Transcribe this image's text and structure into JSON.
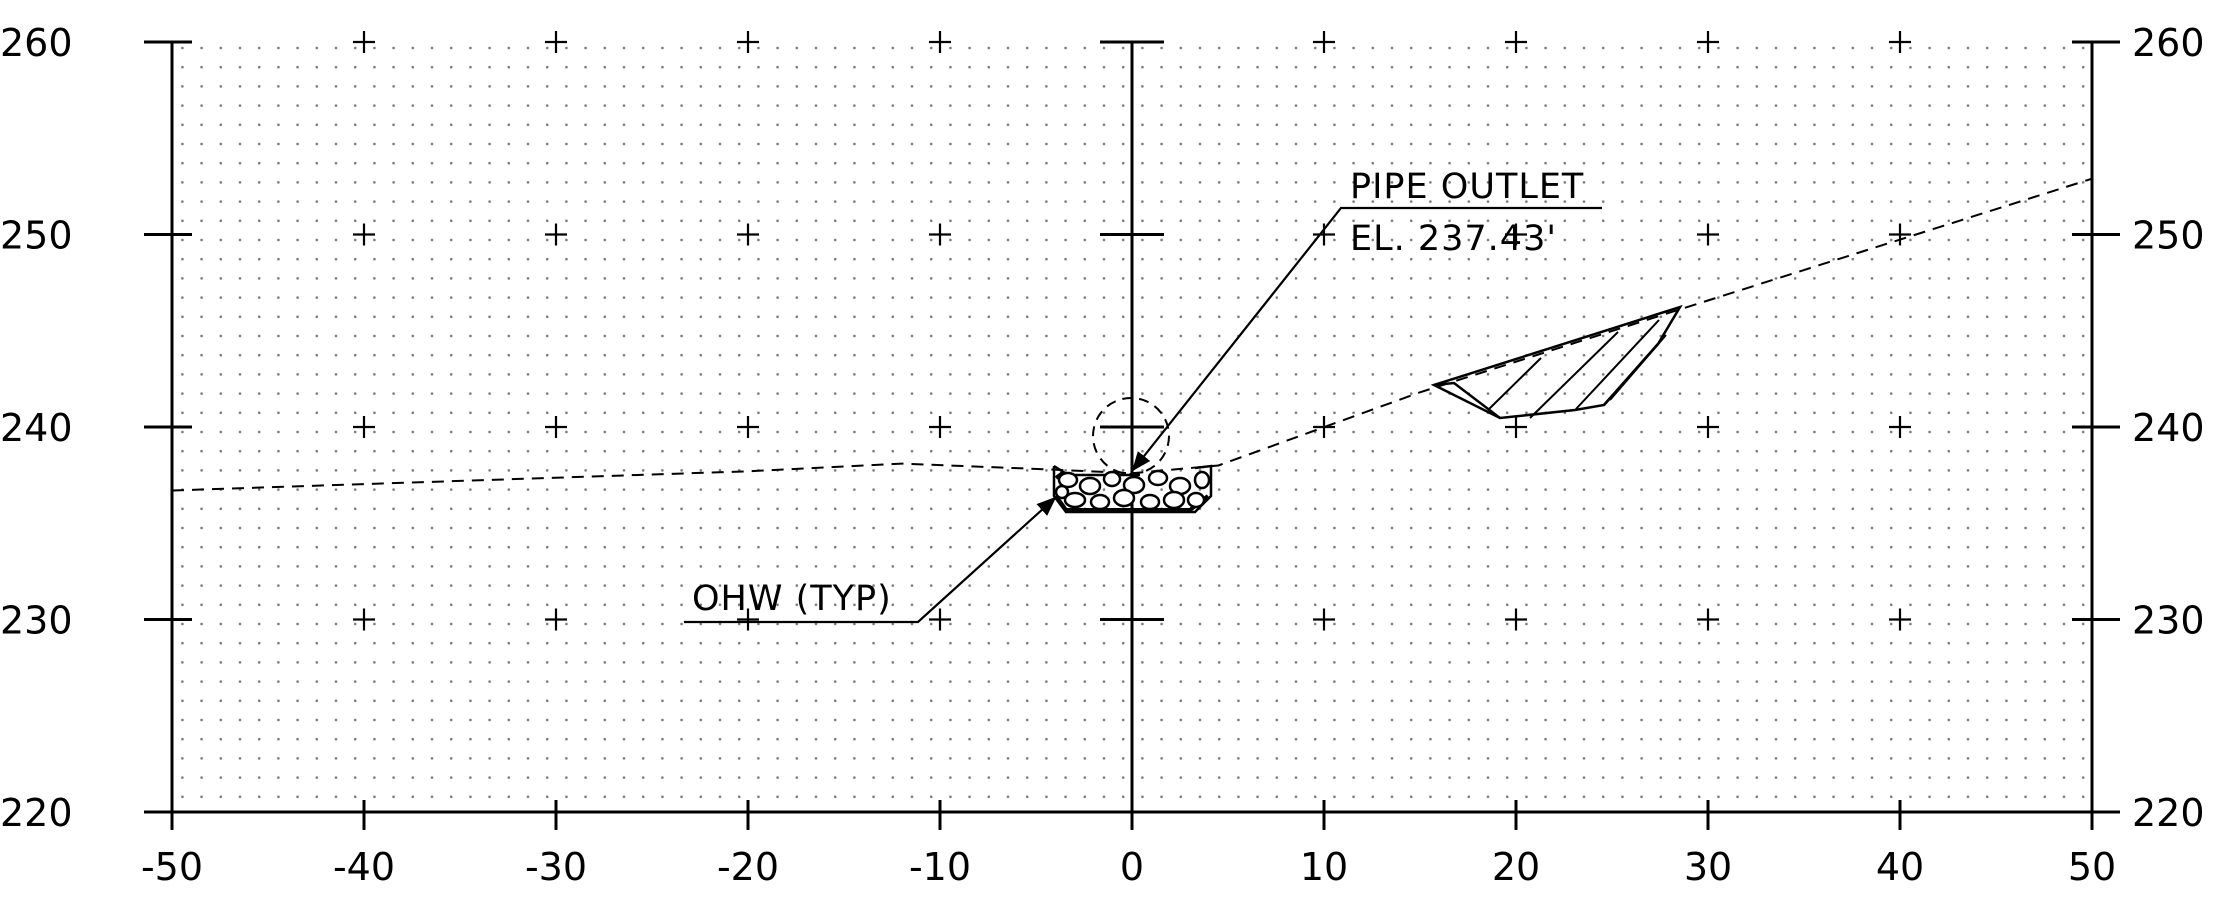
{
  "chart_data": {
    "type": "line",
    "x_ticks": [
      -50,
      -40,
      -30,
      -20,
      -10,
      0,
      10,
      20,
      30,
      40,
      50
    ],
    "x_tick_labels": [
      "-50",
      "-40",
      "-30",
      "-20",
      "-10",
      "0",
      "10",
      "20",
      "30",
      "40",
      "50"
    ],
    "y_ticks": [
      220,
      230,
      240,
      250,
      260
    ],
    "y_tick_labels": [
      "220",
      "230",
      "240",
      "250",
      "260"
    ],
    "xlim": [
      -50,
      50
    ],
    "ylim": [
      220,
      260
    ],
    "grid": true,
    "series": [
      {
        "style": "dashed",
        "points": [
          [
            -50,
            236.7
          ],
          [
            -35,
            237.2
          ],
          [
            -20,
            237.7
          ],
          [
            -12,
            238.1
          ],
          [
            -4.5,
            237.8
          ],
          [
            0,
            237.6
          ],
          [
            4.5,
            238.0
          ],
          [
            15,
            241.8
          ],
          [
            28.5,
            246.1
          ],
          [
            50,
            252.9
          ]
        ]
      }
    ],
    "annotations": [
      {
        "line1": "PIPE OUTLET",
        "line2": "EL. 237.43'"
      },
      {
        "text": "OHW (TYP)"
      }
    ]
  }
}
